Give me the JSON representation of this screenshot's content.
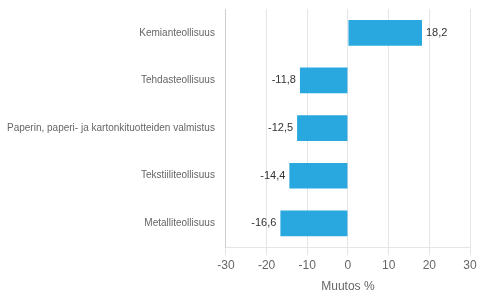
{
  "chart_data": {
    "type": "bar",
    "orientation": "horizontal",
    "categories": [
      "Metalliteollisuus",
      "Tekstiiliteollisuus",
      "Paperin, paperi- ja kartonkituotteiden valmistus",
      "Tehdasteollisuus",
      "Kemianteollisuus"
    ],
    "values": [
      -16.6,
      -14.4,
      -12.5,
      -11.8,
      18.2
    ],
    "value_labels": [
      "-16,6",
      "-14,4",
      "-12,5",
      "-11,8",
      "18,2"
    ],
    "data_labels": true,
    "color": "#29a8e0",
    "xlabel": "Muutos %",
    "xlim": [
      -30,
      30
    ],
    "xticks": [
      -30,
      -20,
      -10,
      0,
      10,
      20,
      30
    ],
    "grid": true
  }
}
